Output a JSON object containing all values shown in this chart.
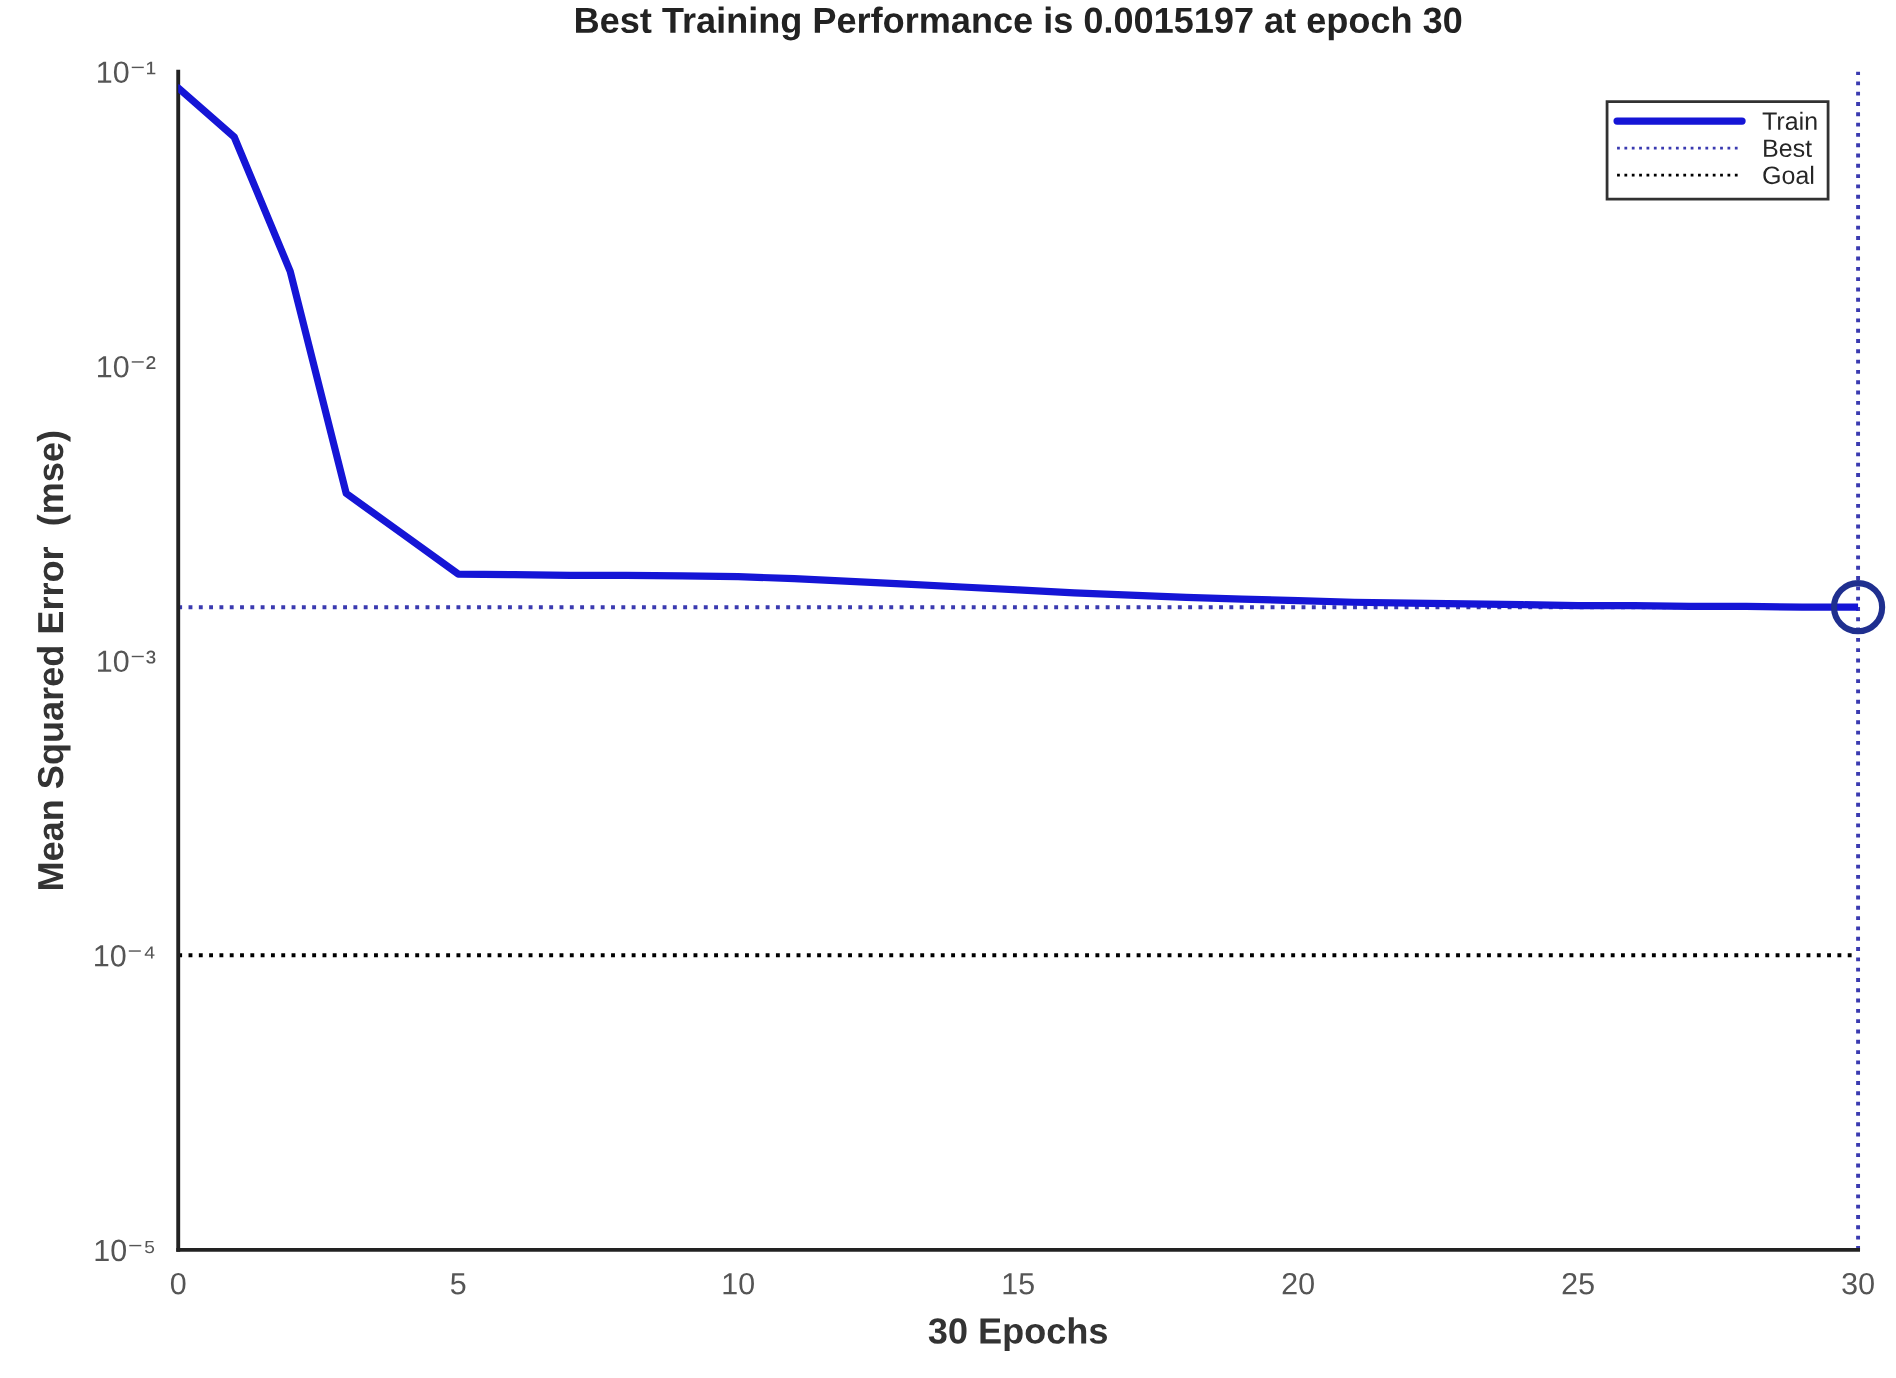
{
  "chart_data": {
    "type": "line",
    "title": "Best Training Performance is 0.0015197 at epoch 30",
    "xlabel": "30 Epochs",
    "ylabel": "Mean Squared Error  (mse)",
    "log": "y",
    "xlim": [
      0,
      30
    ],
    "xticks": [
      0,
      5,
      10,
      15,
      20,
      25,
      30
    ],
    "ylim": [
      1e-05,
      0.1
    ],
    "yticks": [
      {
        "value": 1e-05,
        "label": "10⁻⁵"
      },
      {
        "value": 0.0001,
        "label": "10⁻⁴"
      },
      {
        "value": 0.001,
        "label": "10⁻³"
      },
      {
        "value": 0.01,
        "label": "10⁻²"
      },
      {
        "value": 0.1,
        "label": "10⁻¹"
      }
    ],
    "x": [
      0,
      1,
      2,
      3,
      4,
      5,
      6,
      7,
      8,
      9,
      10,
      11,
      12,
      13,
      14,
      15,
      16,
      17,
      18,
      19,
      20,
      21,
      22,
      23,
      24,
      25,
      26,
      27,
      28,
      29,
      30
    ],
    "series": [
      {
        "name": "Train",
        "color": "#1515d6",
        "values": [
          0.088,
          0.06,
          0.021,
          0.0037,
          0.0027,
          0.00197,
          0.00196,
          0.00195,
          0.00195,
          0.00194,
          0.00193,
          0.0019,
          0.00186,
          0.00182,
          0.00178,
          0.00174,
          0.0017,
          0.00167,
          0.00164,
          0.00162,
          0.0016,
          0.00158,
          0.00157,
          0.00156,
          0.00155,
          0.00154,
          0.00154,
          0.00153,
          0.00153,
          0.00152,
          0.0015197
        ]
      },
      {
        "type": "scatter",
        "marker": "circle",
        "color": "#1f2f8f",
        "x": [
          30
        ],
        "values": [
          0.0015197
        ]
      }
    ],
    "ref_lines": [
      {
        "axis": "y",
        "value": 0.0015197,
        "label": "Best",
        "color": "#3a3ab0",
        "line_style": "dotted"
      },
      {
        "axis": "x",
        "value": 30,
        "color": "#3a3ab0",
        "line_style": "dotted"
      },
      {
        "axis": "y",
        "value": 0.0001,
        "label": "Goal",
        "color": "#000000",
        "line_style": "dotted"
      }
    ],
    "legend": "top right"
  }
}
